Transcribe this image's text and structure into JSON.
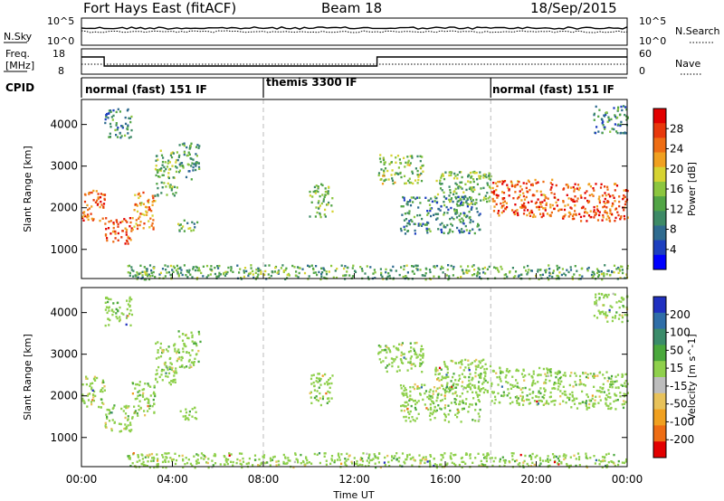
{
  "header": {
    "radar": "Fort Hays East (fitACF)",
    "beam": "Beam 18",
    "date": "18/Sep/2015"
  },
  "noise_panel": {
    "left_label": "N.Sky",
    "right_label": "N.Search",
    "left_ticks": [
      "10^5",
      "10^0"
    ],
    "right_ticks": [
      "10^5",
      "10^0"
    ]
  },
  "freq_panel": {
    "left_label_1": "Freq.",
    "left_label_2": "[MHz]",
    "left_ticks": [
      "18",
      "8"
    ],
    "right_label": "Nave",
    "right_ticks": [
      "60",
      "0"
    ]
  },
  "cpid": {
    "label": "CPID",
    "modes": [
      {
        "name": "normal (fast) 151 IF",
        "start_hour": 0
      },
      {
        "name": "themis 3300 IF",
        "start_hour": 8
      },
      {
        "name": "normal (fast) 151 IF",
        "start_hour": 18
      }
    ]
  },
  "chart_data": [
    {
      "type": "heatmap",
      "panel": "power",
      "ylabel": "Slant Range [km]",
      "y_ticks": [
        "1000",
        "2000",
        "3000",
        "4000"
      ],
      "ylim": [
        300,
        4600
      ],
      "xlim_hours": [
        0,
        24
      ],
      "colorbar": {
        "label": "Power [dB]",
        "ticks": [
          "4",
          "8",
          "12",
          "16",
          "20",
          "24",
          "28"
        ],
        "colors": [
          "#0000ff",
          "#1d3fbf",
          "#2f6b8f",
          "#3d8a66",
          "#52a546",
          "#8cc63f",
          "#d6d332",
          "#f0a020",
          "#ee6d14",
          "#e8380c",
          "#e20000"
        ]
      },
      "regions": [
        {
          "t0": 0.0,
          "t1": 1.0,
          "r0": 1700,
          "r1": 2500,
          "level": 0.8
        },
        {
          "t0": 1.0,
          "t1": 2.2,
          "r0": 1150,
          "r1": 1800,
          "level": 0.85
        },
        {
          "t0": 2.2,
          "t1": 3.2,
          "r0": 1500,
          "r1": 2400,
          "level": 0.7
        },
        {
          "t0": 3.2,
          "t1": 4.2,
          "r0": 2300,
          "r1": 3400,
          "level": 0.45
        },
        {
          "t0": 4.2,
          "t1": 5.2,
          "r0": 2700,
          "r1": 3600,
          "level": 0.35
        },
        {
          "t0": 4.2,
          "t1": 5.1,
          "r0": 1450,
          "r1": 1750,
          "level": 0.4
        },
        {
          "t0": 1.0,
          "t1": 2.2,
          "r0": 3700,
          "r1": 4400,
          "level": 0.3
        },
        {
          "t0": 10.0,
          "t1": 11.0,
          "r0": 1800,
          "r1": 2600,
          "level": 0.45
        },
        {
          "t0": 13.0,
          "t1": 15.0,
          "r0": 2600,
          "r1": 3300,
          "level": 0.5
        },
        {
          "t0": 14.0,
          "t1": 17.5,
          "r0": 1400,
          "r1": 2300,
          "level": 0.3
        },
        {
          "t0": 15.5,
          "t1": 18.0,
          "r0": 2100,
          "r1": 2900,
          "level": 0.45
        },
        {
          "t0": 18.0,
          "t1": 21.0,
          "r0": 1800,
          "r1": 2700,
          "level": 0.8
        },
        {
          "t0": 21.0,
          "t1": 24.0,
          "r0": 1700,
          "r1": 2600,
          "level": 0.82
        },
        {
          "t0": 22.5,
          "t1": 24.0,
          "r0": 3800,
          "r1": 4500,
          "level": 0.3
        },
        {
          "t0": 2.0,
          "t1": 24.0,
          "r0": 300,
          "r1": 650,
          "level": 0.4
        }
      ]
    },
    {
      "type": "heatmap",
      "panel": "velocity",
      "ylabel": "Slant Range [km]",
      "xlabel": "Time UT",
      "x_ticks": [
        "00:00",
        "04:00",
        "08:00",
        "12:00",
        "16:00",
        "20:00",
        "00:00"
      ],
      "y_ticks": [
        "1000",
        "2000",
        "3000",
        "4000"
      ],
      "ylim": [
        300,
        4600
      ],
      "xlim_hours": [
        0,
        24
      ],
      "colorbar": {
        "label": "Velocity [m s^-1]",
        "ticks": [
          "200",
          "100",
          "50",
          "15",
          "-15",
          "-50",
          "-100",
          "-200"
        ],
        "colors": [
          "#2030c0",
          "#2f6ea8",
          "#3b8c6a",
          "#4aa83c",
          "#8fd04c",
          "#bdbdbd",
          "#e8c25a",
          "#f0a020",
          "#ee6d14",
          "#e20000"
        ]
      },
      "regions": [
        {
          "t0": 0.0,
          "t1": 1.0,
          "r0": 1700,
          "r1": 2500,
          "level": 0.5
        },
        {
          "t0": 1.0,
          "t1": 2.2,
          "r0": 1150,
          "r1": 1800,
          "level": 0.5
        },
        {
          "t0": 2.2,
          "t1": 3.2,
          "r0": 1500,
          "r1": 2400,
          "level": 0.65
        },
        {
          "t0": 3.2,
          "t1": 4.2,
          "r0": 2300,
          "r1": 3400,
          "level": 0.5
        },
        {
          "t0": 4.2,
          "t1": 5.2,
          "r0": 2700,
          "r1": 3600,
          "level": 0.7
        },
        {
          "t0": 4.2,
          "t1": 5.1,
          "r0": 1450,
          "r1": 1750,
          "level": 0.4
        },
        {
          "t0": 1.0,
          "t1": 2.2,
          "r0": 3700,
          "r1": 4400,
          "level": 0.7
        },
        {
          "t0": 10.0,
          "t1": 11.0,
          "r0": 1800,
          "r1": 2600,
          "level": 0.5
        },
        {
          "t0": 13.0,
          "t1": 15.0,
          "r0": 2600,
          "r1": 3300,
          "level": 0.5
        },
        {
          "t0": 14.0,
          "t1": 17.5,
          "r0": 1400,
          "r1": 2300,
          "level": 0.5
        },
        {
          "t0": 15.5,
          "t1": 18.0,
          "r0": 2100,
          "r1": 2900,
          "level": 0.5
        },
        {
          "t0": 18.0,
          "t1": 21.0,
          "r0": 1800,
          "r1": 2700,
          "level": 0.5
        },
        {
          "t0": 21.0,
          "t1": 24.0,
          "r0": 1700,
          "r1": 2600,
          "level": 0.5
        },
        {
          "t0": 22.5,
          "t1": 24.0,
          "r0": 3800,
          "r1": 4500,
          "level": 0.7
        },
        {
          "t0": 2.0,
          "t1": 24.0,
          "r0": 300,
          "r1": 650,
          "level": 0.55
        }
      ]
    }
  ]
}
